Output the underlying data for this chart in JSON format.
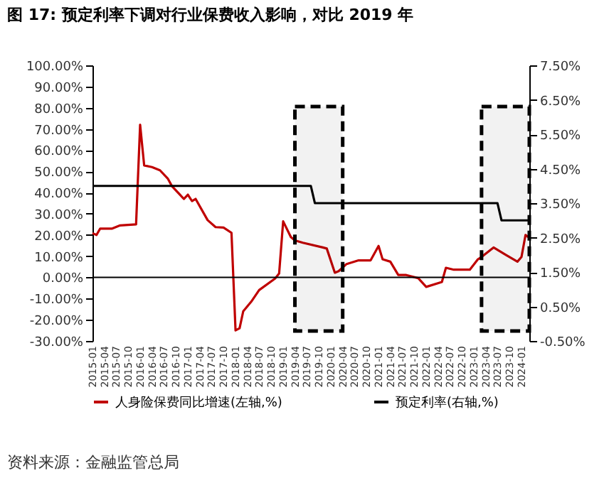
{
  "chart_data": {
    "type": "line",
    "title": "图 17: 预定利率下调对行业保费收入影响，对比 2019 年",
    "annotations": [
      "资料来源：金融监管总局"
    ],
    "legend": "bottom",
    "grid": false,
    "xlim": [
      "2015-01",
      "2024-03"
    ],
    "xticks": [
      "2015-01",
      "2015-04",
      "2015-07",
      "2015-10",
      "2016-01",
      "2016-04",
      "2016-07",
      "2016-10",
      "2017-01",
      "2017-04",
      "2017-07",
      "2017-10",
      "2018-01",
      "2018-04",
      "2018-07",
      "2018-10",
      "2019-01",
      "2019-04",
      "2019-07",
      "2019-10",
      "2020-01",
      "2020-04",
      "2020-07",
      "2020-10",
      "2021-01",
      "2021-04",
      "2021-07",
      "2021-10",
      "2022-01",
      "2022-04",
      "2022-07",
      "2022-10",
      "2023-01",
      "2023-04",
      "2023-07",
      "2023-10",
      "2024-01"
    ],
    "ylim": [
      -30,
      100
    ],
    "yticks": [
      {
        "value": -30,
        "label": "-30.00%"
      },
      {
        "value": -20,
        "label": "-20.00%"
      },
      {
        "value": -10,
        "label": "-10.00%"
      },
      {
        "value": 0,
        "label": "0.00%"
      },
      {
        "value": 10,
        "label": "10.00%"
      },
      {
        "value": 20,
        "label": "20.00%"
      },
      {
        "value": 30,
        "label": "30.00%"
      },
      {
        "value": 40,
        "label": "40.00%"
      },
      {
        "value": 50,
        "label": "50.00%"
      },
      {
        "value": 60,
        "label": "60.00%"
      },
      {
        "value": 70,
        "label": "70.00%"
      },
      {
        "value": 80,
        "label": "80.00%"
      },
      {
        "value": 90,
        "label": "90.00%"
      },
      {
        "value": 100,
        "label": "100.00%"
      }
    ],
    "y2lim": [
      -0.5,
      7.5
    ],
    "y2ticks": [
      {
        "value": -0.5,
        "label": "-0.50%"
      },
      {
        "value": 0.5,
        "label": "0.50%"
      },
      {
        "value": 1.5,
        "label": "1.50%"
      },
      {
        "value": 2.5,
        "label": "2.50%"
      },
      {
        "value": 3.5,
        "label": "3.50%"
      },
      {
        "value": 4.5,
        "label": "4.50%"
      },
      {
        "value": 5.5,
        "label": "5.50%"
      },
      {
        "value": 6.5,
        "label": "6.50%"
      },
      {
        "value": 7.5,
        "label": "7.50%"
      }
    ],
    "ref_lines": [
      {
        "axis": "y",
        "value": 0,
        "color": "#000000"
      }
    ],
    "bands": [
      {
        "axis": "x",
        "from": "2019-04",
        "to": "2020-04",
        "color": "#000000"
      },
      {
        "axis": "x",
        "from": "2023-03",
        "to": "2024-03",
        "color": "#000000"
      }
    ],
    "series": [
      {
        "name": "人身险保费同比增速(左轴,%)",
        "color": "#c00000",
        "x": [
          "2015-01",
          "2015-02",
          "2015-03",
          "2015-06",
          "2015-08",
          "2015-12",
          "2016-01",
          "2016-02",
          "2016-04",
          "2016-06",
          "2016-08",
          "2016-09",
          "2016-12",
          "2017-01",
          "2017-02",
          "2017-03",
          "2017-06",
          "2017-08",
          "2017-10",
          "2017-12",
          "2018-01",
          "2018-02",
          "2018-03",
          "2018-05",
          "2018-07",
          "2018-11",
          "2018-12",
          "2019-01",
          "2019-03",
          "2019-04",
          "2019-06",
          "2019-11",
          "2019-12",
          "2020-02",
          "2020-03",
          "2020-05",
          "2020-08",
          "2020-11",
          "2021-01",
          "2021-02",
          "2021-04",
          "2021-06",
          "2021-08",
          "2021-11",
          "2022-01",
          "2022-05",
          "2022-06",
          "2022-08",
          "2022-12",
          "2023-02",
          "2023-03",
          "2023-06",
          "2023-09",
          "2023-12",
          "2024-01",
          "2024-02",
          "2024-03"
        ],
        "values": [
          20.8,
          20,
          23,
          23,
          24.5,
          25,
          72,
          52.8,
          52,
          50.5,
          46.5,
          43,
          37,
          39,
          36,
          37,
          27,
          23.7,
          23.5,
          21,
          -25,
          -24,
          -16,
          -11.5,
          -6,
          -0.5,
          1.8,
          26.4,
          19,
          17.4,
          16.3,
          14.1,
          13.6,
          2.2,
          2.9,
          6.3,
          8,
          8,
          14.8,
          8.5,
          7.4,
          1.1,
          1.1,
          -0.4,
          -4.5,
          -2.2,
          4.5,
          3.6,
          3.6,
          8.5,
          9.6,
          14.1,
          10.7,
          7.4,
          9.6,
          20,
          18.6
        ]
      },
      {
        "name": "预定利率(右轴,%)",
        "color": "#000000",
        "axis": "y2",
        "x": [
          "2015-01",
          "2019-08",
          "2019-09",
          "2023-07",
          "2023-08",
          "2024-03"
        ],
        "values": [
          4.0,
          4.0,
          3.5,
          3.5,
          3.0,
          3.0
        ]
      }
    ]
  }
}
